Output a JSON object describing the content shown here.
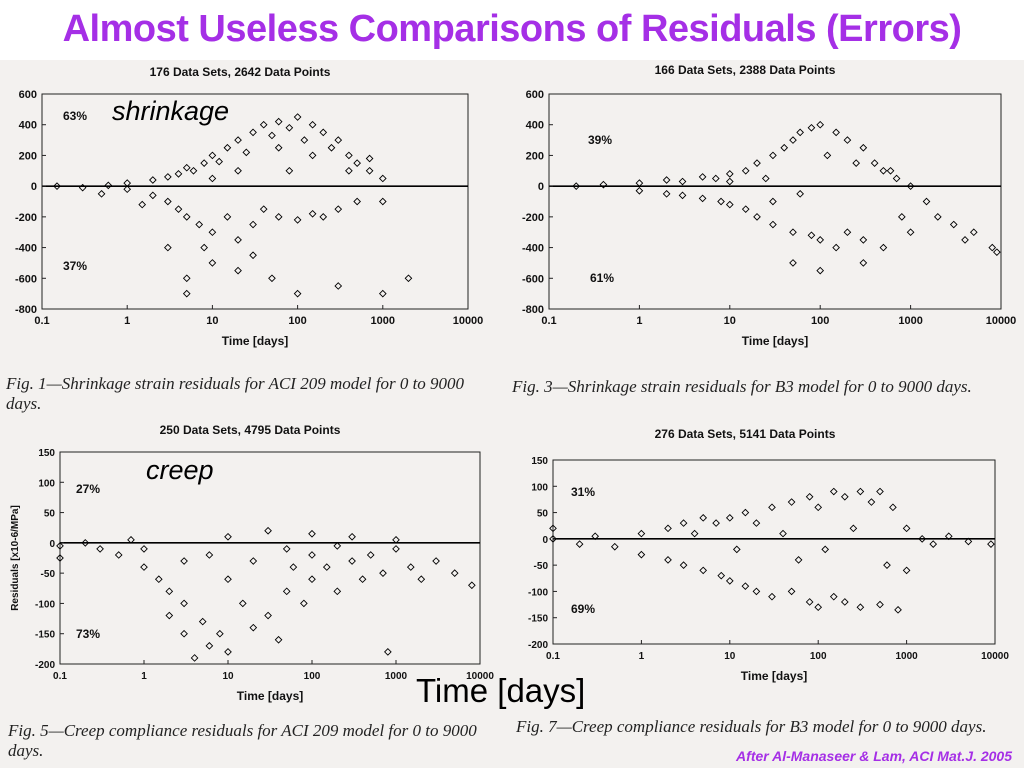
{
  "slide": {
    "title": "Almost Useless Comparisons of Residuals (Errors)",
    "overlay_shrinkage": "shrinkage",
    "overlay_creep": "creep",
    "overlay_time": "Time [days]",
    "credit": "After Al-Manaseer & Lam, ACI Mat.J. 2005"
  },
  "colors": {
    "title": "#a52fe6",
    "marker": "#000000",
    "scan_bg": "#f3f1ef"
  },
  "chart_data": [
    {
      "id": "fig1",
      "type": "scatter",
      "title": "176 Data Sets, 2642 Data Points",
      "xlabel": "Time [days]",
      "ylabel": "",
      "xscale": "log",
      "xlim": [
        0.1,
        10000
      ],
      "ylim": [
        -800,
        600
      ],
      "xticks": [
        "0.1",
        "1",
        "10",
        "100",
        "1000",
        "10000"
      ],
      "yticks": [
        "600",
        "400",
        "200",
        "0",
        "-200",
        "-400",
        "-600",
        "-800"
      ],
      "annotations": [
        "63%",
        "37%"
      ],
      "caption": "Fig. 1—Shrinkage strain residuals for ACI 209 model for 0 to 9000 days.",
      "series": [
        {
          "marker": "diamond",
          "points": [
            [
              0.15,
              0
            ],
            [
              0.3,
              -10
            ],
            [
              0.6,
              5
            ],
            [
              1,
              -20
            ],
            [
              1,
              20
            ],
            [
              2,
              40
            ],
            [
              2,
              -60
            ],
            [
              3,
              60
            ],
            [
              3,
              -100
            ],
            [
              4,
              80
            ],
            [
              4,
              -150
            ],
            [
              5,
              120
            ],
            [
              5,
              -200
            ],
            [
              6,
              100
            ],
            [
              7,
              -250
            ],
            [
              8,
              150
            ],
            [
              10,
              200
            ],
            [
              10,
              -300
            ],
            [
              12,
              160
            ],
            [
              15,
              250
            ],
            [
              15,
              -200
            ],
            [
              20,
              300
            ],
            [
              20,
              -350
            ],
            [
              25,
              220
            ],
            [
              30,
              350
            ],
            [
              30,
              -250
            ],
            [
              40,
              400
            ],
            [
              40,
              -150
            ],
            [
              50,
              330
            ],
            [
              60,
              420
            ],
            [
              60,
              -200
            ],
            [
              80,
              380
            ],
            [
              100,
              450
            ],
            [
              100,
              -220
            ],
            [
              120,
              300
            ],
            [
              150,
              400
            ],
            [
              150,
              -180
            ],
            [
              200,
              350
            ],
            [
              200,
              -200
            ],
            [
              250,
              250
            ],
            [
              300,
              300
            ],
            [
              300,
              -150
            ],
            [
              400,
              200
            ],
            [
              500,
              150
            ],
            [
              500,
              -100
            ],
            [
              700,
              100
            ],
            [
              1000,
              50
            ],
            [
              1000,
              -100
            ],
            [
              3,
              -400
            ],
            [
              5,
              -600
            ],
            [
              5,
              -700
            ],
            [
              10,
              -500
            ],
            [
              20,
              -550
            ],
            [
              50,
              -600
            ],
            [
              100,
              -700
            ],
            [
              300,
              -650
            ],
            [
              1000,
              -700
            ],
            [
              2000,
              -600
            ],
            [
              0.5,
              -50
            ],
            [
              1.5,
              -120
            ],
            [
              8,
              -400
            ],
            [
              30,
              -450
            ],
            [
              60,
              250
            ],
            [
              80,
              100
            ],
            [
              150,
              200
            ],
            [
              400,
              100
            ],
            [
              700,
              180
            ],
            [
              20,
              100
            ],
            [
              10,
              50
            ]
          ]
        }
      ]
    },
    {
      "id": "fig3",
      "type": "scatter",
      "title": "166 Data Sets, 2388 Data Points",
      "xlabel": "Time [days]",
      "ylabel": "",
      "xscale": "log",
      "xlim": [
        0.1,
        10000
      ],
      "ylim": [
        -800,
        600
      ],
      "xticks": [
        "0.1",
        "1",
        "10",
        "100",
        "1000",
        "10000"
      ],
      "yticks": [
        "600",
        "400",
        "200",
        "0",
        "-200",
        "-400",
        "-600",
        "-800"
      ],
      "annotations": [
        "39%",
        "61%"
      ],
      "caption": "Fig. 3—Shrinkage strain residuals for B3 model for 0 to 9000 days.",
      "series": [
        {
          "marker": "diamond",
          "points": [
            [
              0.2,
              0
            ],
            [
              0.4,
              10
            ],
            [
              1,
              20
            ],
            [
              1,
              -30
            ],
            [
              2,
              40
            ],
            [
              2,
              -50
            ],
            [
              3,
              30
            ],
            [
              3,
              -60
            ],
            [
              5,
              60
            ],
            [
              5,
              -80
            ],
            [
              7,
              50
            ],
            [
              8,
              -100
            ],
            [
              10,
              80
            ],
            [
              10,
              -120
            ],
            [
              15,
              100
            ],
            [
              15,
              -150
            ],
            [
              20,
              150
            ],
            [
              20,
              -200
            ],
            [
              30,
              200
            ],
            [
              30,
              -250
            ],
            [
              40,
              250
            ],
            [
              50,
              300
            ],
            [
              50,
              -300
            ],
            [
              60,
              350
            ],
            [
              80,
              380
            ],
            [
              80,
              -320
            ],
            [
              100,
              400
            ],
            [
              100,
              -350
            ],
            [
              150,
              350
            ],
            [
              150,
              -400
            ],
            [
              200,
              300
            ],
            [
              200,
              -300
            ],
            [
              300,
              250
            ],
            [
              300,
              -350
            ],
            [
              400,
              150
            ],
            [
              500,
              100
            ],
            [
              500,
              -400
            ],
            [
              700,
              50
            ],
            [
              1000,
              0
            ],
            [
              1000,
              -300
            ],
            [
              1500,
              -100
            ],
            [
              2000,
              -200
            ],
            [
              3000,
              -250
            ],
            [
              4000,
              -350
            ],
            [
              5000,
              -300
            ],
            [
              8000,
              -400
            ],
            [
              9000,
              -430
            ],
            [
              50,
              -500
            ],
            [
              100,
              -550
            ],
            [
              300,
              -500
            ],
            [
              30,
              -100
            ],
            [
              60,
              -50
            ],
            [
              120,
              200
            ],
            [
              250,
              150
            ],
            [
              600,
              100
            ],
            [
              800,
              -200
            ],
            [
              10,
              30
            ],
            [
              25,
              50
            ]
          ]
        }
      ]
    },
    {
      "id": "fig5",
      "type": "scatter",
      "title": "250 Data Sets, 4795 Data Points",
      "xlabel": "Time [days]",
      "ylabel": "Residuals [x10-6/MPa]",
      "xscale": "log",
      "xlim": [
        0.1,
        10000
      ],
      "ylim": [
        -200,
        150
      ],
      "xticks": [
        "0.1",
        "1",
        "10",
        "100",
        "1000",
        "10000"
      ],
      "yticks": [
        "150",
        "100",
        "50",
        "0",
        "-50",
        "-100",
        "-150",
        "-200"
      ],
      "annotations": [
        "27%",
        "73%"
      ],
      "caption": "Fig. 5—Creep compliance residuals for ACI 209 model for 0 to 9000 days.",
      "series": [
        {
          "marker": "diamond",
          "points": [
            [
              0.1,
              -5
            ],
            [
              0.1,
              -25
            ],
            [
              0.2,
              0
            ],
            [
              0.3,
              -10
            ],
            [
              0.5,
              -20
            ],
            [
              0.7,
              5
            ],
            [
              1,
              -10
            ],
            [
              1,
              -40
            ],
            [
              1.5,
              -60
            ],
            [
              2,
              -80
            ],
            [
              2,
              -120
            ],
            [
              3,
              -100
            ],
            [
              3,
              -150
            ],
            [
              4,
              -190
            ],
            [
              5,
              -130
            ],
            [
              6,
              -170
            ],
            [
              8,
              -150
            ],
            [
              10,
              -60
            ],
            [
              10,
              -180
            ],
            [
              15,
              -100
            ],
            [
              20,
              -140
            ],
            [
              30,
              -120
            ],
            [
              40,
              -160
            ],
            [
              50,
              -80
            ],
            [
              60,
              -40
            ],
            [
              80,
              -100
            ],
            [
              100,
              -60
            ],
            [
              100,
              -20
            ],
            [
              150,
              -40
            ],
            [
              200,
              -80
            ],
            [
              300,
              -30
            ],
            [
              400,
              -60
            ],
            [
              500,
              -20
            ],
            [
              700,
              -50
            ],
            [
              1000,
              -10
            ],
            [
              1500,
              -40
            ],
            [
              2000,
              -60
            ],
            [
              3000,
              -30
            ],
            [
              5000,
              -50
            ],
            [
              8000,
              -70
            ],
            [
              10,
              10
            ],
            [
              30,
              20
            ],
            [
              100,
              15
            ],
            [
              300,
              10
            ],
            [
              1000,
              5
            ],
            [
              50,
              -10
            ],
            [
              200,
              -5
            ],
            [
              20,
              -30
            ],
            [
              6,
              -20
            ],
            [
              3,
              -30
            ],
            [
              800,
              -180
            ]
          ]
        }
      ]
    },
    {
      "id": "fig7",
      "type": "scatter",
      "title": "276 Data Sets, 5141 Data Points",
      "xlabel": "Time [days]",
      "ylabel": "",
      "xscale": "log",
      "xlim": [
        0.1,
        10000
      ],
      "ylim": [
        -200,
        150
      ],
      "xticks": [
        "0.1",
        "1",
        "10",
        "100",
        "1000",
        "10000"
      ],
      "yticks": [
        "150",
        "100",
        "50",
        "0",
        "-50",
        "-100",
        "-150",
        "-200"
      ],
      "annotations": [
        "31%",
        "69%"
      ],
      "caption": "Fig. 7—Creep compliance residuals for B3 model for 0 to 9000 days.",
      "series": [
        {
          "marker": "diamond",
          "points": [
            [
              0.1,
              0
            ],
            [
              0.1,
              20
            ],
            [
              0.2,
              -10
            ],
            [
              0.3,
              5
            ],
            [
              0.5,
              -15
            ],
            [
              1,
              10
            ],
            [
              1,
              -30
            ],
            [
              2,
              20
            ],
            [
              2,
              -40
            ],
            [
              3,
              30
            ],
            [
              3,
              -50
            ],
            [
              5,
              40
            ],
            [
              5,
              -60
            ],
            [
              7,
              30
            ],
            [
              8,
              -70
            ],
            [
              10,
              40
            ],
            [
              10,
              -80
            ],
            [
              15,
              50
            ],
            [
              15,
              -90
            ],
            [
              20,
              30
            ],
            [
              20,
              -100
            ],
            [
              30,
              60
            ],
            [
              30,
              -110
            ],
            [
              50,
              70
            ],
            [
              50,
              -100
            ],
            [
              80,
              80
            ],
            [
              80,
              -120
            ],
            [
              100,
              60
            ],
            [
              100,
              -130
            ],
            [
              150,
              90
            ],
            [
              150,
              -110
            ],
            [
              200,
              80
            ],
            [
              200,
              -120
            ],
            [
              300,
              90
            ],
            [
              300,
              -130
            ],
            [
              400,
              70
            ],
            [
              500,
              90
            ],
            [
              500,
              -125
            ],
            [
              700,
              60
            ],
            [
              800,
              -135
            ],
            [
              1000,
              20
            ],
            [
              1000,
              -60
            ],
            [
              1500,
              0
            ],
            [
              2000,
              -10
            ],
            [
              3000,
              5
            ],
            [
              5000,
              -5
            ],
            [
              9000,
              -10
            ],
            [
              40,
              10
            ],
            [
              60,
              -40
            ],
            [
              120,
              -20
            ],
            [
              250,
              20
            ],
            [
              600,
              -50
            ],
            [
              12,
              -20
            ],
            [
              4,
              10
            ]
          ]
        }
      ]
    }
  ]
}
